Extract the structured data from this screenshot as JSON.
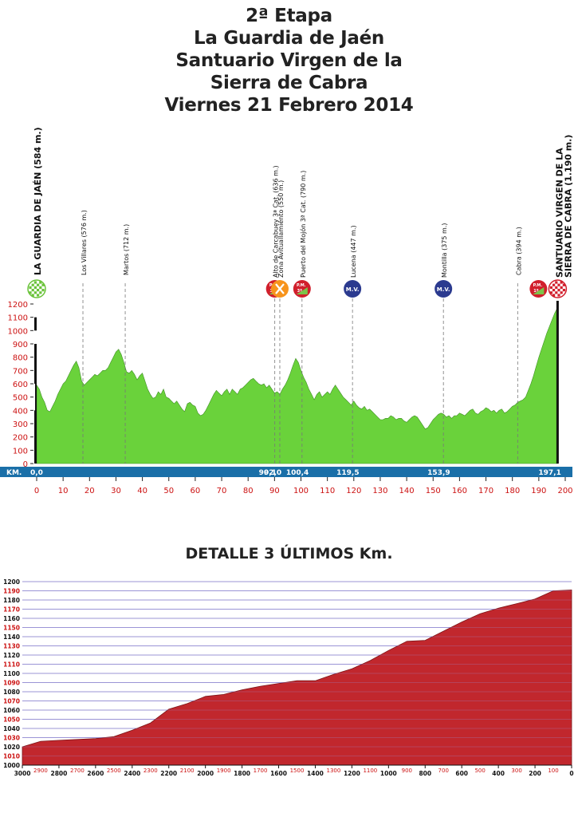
{
  "header": {
    "title_lines": [
      "2ª Etapa",
      "La Guardia de Jaén",
      "Santuario Virgen de la",
      "Sierra de Cabra",
      "Viernes 21 Febrero 2014"
    ]
  },
  "chart_data": [
    {
      "type": "area",
      "name": "stage-profile",
      "fill_color": "#6ad23b",
      "stroke_color": "#3f8f25",
      "axis_color_y": "#cc1111",
      "axis_color_x": "#cc1111",
      "xlim": [
        0,
        200
      ],
      "ylim": [
        0,
        1200
      ],
      "x_ticks": [
        0,
        10,
        20,
        30,
        40,
        50,
        60,
        70,
        80,
        90,
        100,
        110,
        120,
        130,
        140,
        150,
        160,
        170,
        180,
        190,
        200
      ],
      "y_ticks": [
        0,
        100,
        200,
        300,
        400,
        500,
        600,
        700,
        800,
        900,
        1000,
        1100,
        1200
      ],
      "km_bar": {
        "label": "KM.",
        "color": "#1a6fa8",
        "marks": [
          {
            "x": 0,
            "text": "0,0"
          },
          {
            "x": 90.1,
            "text": "90,1"
          },
          {
            "x": 92.0,
            "text": "92,0"
          },
          {
            "x": 100.4,
            "text": "100,4"
          },
          {
            "x": 119.5,
            "text": "119,5"
          },
          {
            "x": 153.9,
            "text": "153,9"
          },
          {
            "x": 197.1,
            "text": "197,1"
          }
        ]
      },
      "points": [
        [
          0,
          590
        ],
        [
          1,
          560
        ],
        [
          2,
          500
        ],
        [
          3,
          460
        ],
        [
          4,
          400
        ],
        [
          5,
          390
        ],
        [
          6,
          430
        ],
        [
          7,
          470
        ],
        [
          8,
          520
        ],
        [
          9,
          560
        ],
        [
          10,
          600
        ],
        [
          11,
          620
        ],
        [
          12,
          660
        ],
        [
          13,
          700
        ],
        [
          14,
          740
        ],
        [
          15,
          770
        ],
        [
          16,
          720
        ],
        [
          17,
          620
        ],
        [
          18,
          590
        ],
        [
          19,
          610
        ],
        [
          20,
          630
        ],
        [
          21,
          650
        ],
        [
          22,
          670
        ],
        [
          23,
          660
        ],
        [
          24,
          680
        ],
        [
          25,
          700
        ],
        [
          26,
          700
        ],
        [
          27,
          720
        ],
        [
          28,
          760
        ],
        [
          29,
          800
        ],
        [
          30,
          840
        ],
        [
          31,
          860
        ],
        [
          32,
          820
        ],
        [
          33,
          760
        ],
        [
          34,
          690
        ],
        [
          35,
          680
        ],
        [
          36,
          700
        ],
        [
          37,
          670
        ],
        [
          38,
          630
        ],
        [
          39,
          660
        ],
        [
          40,
          680
        ],
        [
          41,
          620
        ],
        [
          42,
          560
        ],
        [
          43,
          520
        ],
        [
          44,
          490
        ],
        [
          45,
          500
        ],
        [
          46,
          540
        ],
        [
          47,
          520
        ],
        [
          48,
          560
        ],
        [
          49,
          500
        ],
        [
          50,
          490
        ],
        [
          51,
          470
        ],
        [
          52,
          450
        ],
        [
          53,
          470
        ],
        [
          54,
          440
        ],
        [
          55,
          410
        ],
        [
          56,
          390
        ],
        [
          57,
          450
        ],
        [
          58,
          460
        ],
        [
          59,
          440
        ],
        [
          60,
          430
        ],
        [
          61,
          380
        ],
        [
          62,
          360
        ],
        [
          63,
          370
        ],
        [
          64,
          400
        ],
        [
          65,
          440
        ],
        [
          66,
          480
        ],
        [
          67,
          520
        ],
        [
          68,
          550
        ],
        [
          69,
          530
        ],
        [
          70,
          510
        ],
        [
          71,
          540
        ],
        [
          72,
          560
        ],
        [
          73,
          520
        ],
        [
          74,
          560
        ],
        [
          75,
          540
        ],
        [
          76,
          520
        ],
        [
          77,
          560
        ],
        [
          78,
          570
        ],
        [
          79,
          590
        ],
        [
          80,
          610
        ],
        [
          81,
          630
        ],
        [
          82,
          640
        ],
        [
          83,
          620
        ],
        [
          84,
          600
        ],
        [
          85,
          590
        ],
        [
          86,
          600
        ],
        [
          87,
          570
        ],
        [
          88,
          590
        ],
        [
          89,
          560
        ],
        [
          90,
          530
        ],
        [
          91,
          540
        ],
        [
          92,
          520
        ],
        [
          93,
          560
        ],
        [
          94,
          590
        ],
        [
          95,
          630
        ],
        [
          96,
          680
        ],
        [
          97,
          740
        ],
        [
          98,
          790
        ],
        [
          99,
          760
        ],
        [
          100,
          700
        ],
        [
          101,
          650
        ],
        [
          102,
          610
        ],
        [
          103,
          560
        ],
        [
          104,
          520
        ],
        [
          105,
          480
        ],
        [
          106,
          520
        ],
        [
          107,
          540
        ],
        [
          108,
          500
        ],
        [
          109,
          520
        ],
        [
          110,
          540
        ],
        [
          111,
          520
        ],
        [
          112,
          560
        ],
        [
          113,
          590
        ],
        [
          114,
          560
        ],
        [
          115,
          530
        ],
        [
          116,
          500
        ],
        [
          117,
          480
        ],
        [
          118,
          460
        ],
        [
          119,
          440
        ],
        [
          120,
          470
        ],
        [
          121,
          440
        ],
        [
          122,
          420
        ],
        [
          123,
          410
        ],
        [
          124,
          430
        ],
        [
          125,
          400
        ],
        [
          126,
          410
        ],
        [
          127,
          390
        ],
        [
          128,
          370
        ],
        [
          129,
          350
        ],
        [
          130,
          330
        ],
        [
          131,
          330
        ],
        [
          132,
          340
        ],
        [
          133,
          340
        ],
        [
          134,
          360
        ],
        [
          135,
          350
        ],
        [
          136,
          330
        ],
        [
          137,
          340
        ],
        [
          138,
          340
        ],
        [
          139,
          320
        ],
        [
          140,
          310
        ],
        [
          141,
          330
        ],
        [
          142,
          350
        ],
        [
          143,
          360
        ],
        [
          144,
          350
        ],
        [
          145,
          320
        ],
        [
          146,
          290
        ],
        [
          147,
          260
        ],
        [
          148,
          270
        ],
        [
          149,
          300
        ],
        [
          150,
          330
        ],
        [
          151,
          350
        ],
        [
          152,
          370
        ],
        [
          153,
          380
        ],
        [
          154,
          370
        ],
        [
          155,
          350
        ],
        [
          156,
          360
        ],
        [
          157,
          340
        ],
        [
          158,
          360
        ],
        [
          159,
          360
        ],
        [
          160,
          380
        ],
        [
          161,
          370
        ],
        [
          162,
          360
        ],
        [
          163,
          380
        ],
        [
          164,
          400
        ],
        [
          165,
          410
        ],
        [
          166,
          380
        ],
        [
          167,
          370
        ],
        [
          168,
          390
        ],
        [
          169,
          400
        ],
        [
          170,
          420
        ],
        [
          171,
          410
        ],
        [
          172,
          390
        ],
        [
          173,
          400
        ],
        [
          174,
          380
        ],
        [
          175,
          400
        ],
        [
          176,
          410
        ],
        [
          177,
          380
        ],
        [
          178,
          390
        ],
        [
          179,
          410
        ],
        [
          180,
          430
        ],
        [
          181,
          440
        ],
        [
          182,
          460
        ],
        [
          183,
          470
        ],
        [
          184,
          480
        ],
        [
          185,
          500
        ],
        [
          186,
          550
        ],
        [
          187,
          600
        ],
        [
          188,
          660
        ],
        [
          189,
          730
        ],
        [
          190,
          800
        ],
        [
          191,
          860
        ],
        [
          192,
          920
        ],
        [
          193,
          980
        ],
        [
          194,
          1030
        ],
        [
          195,
          1080
        ],
        [
          196,
          1130
        ],
        [
          197,
          1170
        ],
        [
          197.1,
          1190
        ]
      ],
      "landmarks": [
        {
          "x": 0,
          "label": "LA GUARDIA DE JAÉN (584 m.)",
          "icon": "start-flag-icon",
          "bold": true
        },
        {
          "x": 17.5,
          "label": "Los Villares (576 m.)",
          "icon": ""
        },
        {
          "x": 33.5,
          "label": "Martos (712 m.)",
          "icon": ""
        },
        {
          "x": 90.1,
          "label": "Alto de Carcabuey 3ª Cat. (636 m.)",
          "icon": "mountain-prize-icon",
          "icon_text": "P.M.",
          "icon_sub": "3ª"
        },
        {
          "x": 92.0,
          "label": "Zona Avituallamiento (550 m.)",
          "icon": "feed-zone-icon"
        },
        {
          "x": 100.4,
          "label": "Puerto del Mojón 3ª Cat. (790 m.)",
          "icon": "mountain-prize-icon",
          "icon_text": "P.M.",
          "icon_sub": "3ª"
        },
        {
          "x": 119.5,
          "label": "Lucena (447 m.)",
          "icon": "sprint-icon",
          "icon_text": "M.V."
        },
        {
          "x": 153.9,
          "label": "Montilla (375 m.)",
          "icon": "sprint-icon",
          "icon_text": "M.V."
        },
        {
          "x": 182,
          "label": "Cabra (394 m.)",
          "icon": ""
        },
        {
          "x": 197.1,
          "label": "SANTUARIO VIRGEN DE LA",
          "label2": "SIERRA DE CABRA (1.190 m.)",
          "icon": "finish-flag-icon",
          "bold": true,
          "extra_icon": "mountain-prize-icon",
          "extra_icon_text": "P.M.",
          "extra_icon_sub": "1ª"
        }
      ]
    },
    {
      "type": "area",
      "name": "final-3km-detail",
      "fill_color": "#c1272d",
      "stroke_color": "#7a1518",
      "xlim": [
        3000,
        0
      ],
      "ylim": [
        1000,
        1200
      ],
      "x_major_ticks": [
        3000,
        2800,
        2600,
        2400,
        2200,
        2000,
        1800,
        1600,
        1400,
        1200,
        1000,
        800,
        600,
        400,
        200,
        0
      ],
      "x_minor_ticks": [
        2900,
        2700,
        2500,
        2300,
        2100,
        1900,
        1700,
        1500,
        1300,
        1100,
        900,
        700,
        500,
        300,
        100
      ],
      "y_ticks": [
        1000,
        1010,
        1020,
        1030,
        1040,
        1050,
        1060,
        1070,
        1080,
        1090,
        1100,
        1110,
        1120,
        1130,
        1140,
        1150,
        1160,
        1170,
        1180,
        1190,
        1200
      ],
      "points": [
        [
          3000,
          1020
        ],
        [
          2900,
          1026
        ],
        [
          2800,
          1027
        ],
        [
          2700,
          1028
        ],
        [
          2600,
          1029
        ],
        [
          2500,
          1031
        ],
        [
          2400,
          1038
        ],
        [
          2300,
          1046
        ],
        [
          2200,
          1061
        ],
        [
          2100,
          1067
        ],
        [
          2000,
          1075
        ],
        [
          1900,
          1077
        ],
        [
          1800,
          1082
        ],
        [
          1700,
          1086
        ],
        [
          1600,
          1089
        ],
        [
          1500,
          1092
        ],
        [
          1400,
          1092
        ],
        [
          1300,
          1099
        ],
        [
          1200,
          1105
        ],
        [
          1100,
          1114
        ],
        [
          1000,
          1125
        ],
        [
          900,
          1135
        ],
        [
          800,
          1136
        ],
        [
          700,
          1146
        ],
        [
          600,
          1156
        ],
        [
          500,
          1165
        ],
        [
          400,
          1171
        ],
        [
          300,
          1176
        ],
        [
          200,
          1181
        ],
        [
          100,
          1190
        ],
        [
          0,
          1191
        ]
      ]
    }
  ],
  "detail": {
    "title": "DETALLE 3 ÚLTIMOS Km."
  }
}
